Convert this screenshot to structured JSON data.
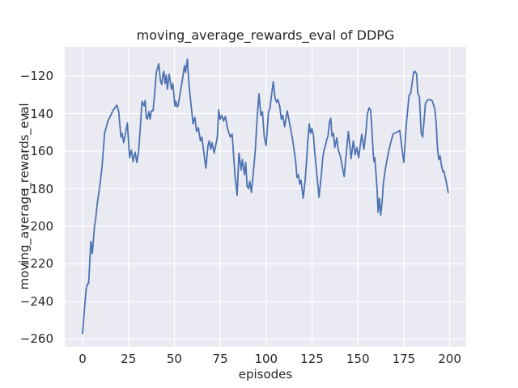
{
  "chart_data": {
    "type": "line",
    "title": "moving_average_rewards_eval of DDPG",
    "xlabel": "episodes",
    "ylabel": "moving_average_rewards_eval",
    "grid": true,
    "legend": "none",
    "background_color": "#eaeaf2",
    "grid_color": "#ffffff",
    "line_color": "#4c72b0",
    "text_color": "#262626",
    "xlim": [
      -9.71,
      209.0
    ],
    "ylim": [
      -264.1,
      -104.5
    ],
    "x_ticks": [
      0,
      25,
      50,
      75,
      100,
      125,
      150,
      175,
      200
    ],
    "x_tick_labels": [
      "0",
      "25",
      "50",
      "75",
      "100",
      "125",
      "150",
      "175",
      "200"
    ],
    "y_ticks": [
      -120,
      -140,
      -160,
      -180,
      -200,
      -220,
      -240,
      -260
    ],
    "y_tick_labels": [
      "−120",
      "−140",
      "−160",
      "−180",
      "−200",
      "−220",
      "−240",
      "−260"
    ],
    "series": [
      {
        "name": "moving_average_rewards_eval",
        "x": [
          0,
          1,
          2,
          2.8,
          3.3,
          4.5,
          5.3,
          6.5,
          7.2,
          8,
          9.4,
          10.6,
          12,
          13.8,
          15.3,
          16.8,
          18.7,
          19.7,
          20.9,
          21.5,
          22.4,
          24.4,
          25.6,
          26.6,
          27.5,
          28.6,
          29.6,
          30.6,
          32.4,
          33.6,
          34.1,
          34.7,
          35.3,
          36.1,
          36.8,
          37.5,
          38.4,
          39.4,
          40.2,
          41.5,
          42.4,
          43.1,
          43.8,
          44.3,
          44.9,
          45.6,
          46.2,
          47.2,
          48.4,
          49.2,
          50.3,
          50.8,
          51.6,
          52.1,
          54.3,
          55.5,
          56.1,
          57.1,
          58,
          59.5,
          60.2,
          61.2,
          62.1,
          63.1,
          64.2,
          65,
          66.1,
          67.2,
          68.3,
          69,
          69.8,
          70.5,
          71.7,
          73.4,
          74.2,
          74.9,
          75.9,
          76.8,
          77.8,
          79,
          80.5,
          81.5,
          83,
          84.2,
          85.2,
          86.4,
          87.1,
          88.2,
          88.9,
          89.6,
          90.4,
          91.1,
          92,
          94,
          95.2,
          96.1,
          97.1,
          98,
          99,
          100,
          101.3,
          102,
          103.9,
          104.9,
          105.7,
          106.4,
          107.4,
          108.3,
          109.1,
          110.1,
          111.5,
          113.9,
          114.6,
          116.1,
          116.8,
          117.6,
          118.3,
          119,
          120.2,
          121.3,
          122,
          122.7,
          123.5,
          124.2,
          124.9,
          125.7,
          126.4,
          127.1,
          127.9,
          128.8,
          130.1,
          130.8,
          131.5,
          132.3,
          133,
          133.7,
          134.5,
          135.2,
          135.9,
          136.7,
          137.4,
          138.5,
          139.3,
          140.4,
          142.5,
          144.8,
          146.3,
          147.5,
          148.5,
          149.4,
          150.4,
          152.1,
          153.3,
          154.4,
          155.1,
          156.1,
          156.9,
          157.7,
          158.4,
          158.8,
          159.2,
          159.9,
          160.5,
          161,
          161.7,
          162.4,
          163.2,
          163.9,
          164.7,
          165.7,
          166.9,
          167.9,
          169.1,
          171,
          172.8,
          175,
          176.4,
          177.9,
          178.7,
          180.4,
          181.1,
          182,
          182.6,
          183.5,
          184.5,
          185.3,
          186.8,
          187.8,
          188.9,
          190.4,
          191.9,
          192.6,
          193.4,
          194.1,
          194.8,
          195.5,
          196.3,
          196.8,
          198,
          199.2
        ],
        "y": [
          -257,
          -244,
          -233,
          -230.5,
          -230.5,
          -208,
          -214.5,
          -200,
          -195.5,
          -188,
          -178.5,
          -168.5,
          -150.5,
          -144,
          -141,
          -138,
          -135.5,
          -139,
          -152.5,
          -150.5,
          -155.5,
          -145,
          -163.5,
          -159.5,
          -165.5,
          -160.5,
          -166,
          -159.5,
          -133.5,
          -136,
          -133,
          -142,
          -143,
          -139,
          -143,
          -138.5,
          -138.5,
          -128,
          -118,
          -113.5,
          -122.5,
          -124.5,
          -119,
          -117.5,
          -124,
          -119.5,
          -127,
          -119,
          -127,
          -124,
          -136,
          -133.5,
          -136.5,
          -135.5,
          -122.5,
          -114.5,
          -118,
          -111,
          -125,
          -139,
          -145.5,
          -142,
          -149.5,
          -147.5,
          -154.5,
          -152.5,
          -161,
          -169,
          -157,
          -154.5,
          -159,
          -155.5,
          -161,
          -152.5,
          -138,
          -143,
          -141,
          -144,
          -141.5,
          -148,
          -152.5,
          -151,
          -172.5,
          -183.5,
          -161,
          -170,
          -164.5,
          -172.5,
          -166,
          -178.5,
          -180,
          -176,
          -182,
          -161,
          -141,
          -129.5,
          -141,
          -139,
          -152.5,
          -157,
          -139,
          -137.5,
          -123,
          -132,
          -134,
          -132.5,
          -136,
          -143,
          -141,
          -147,
          -138.5,
          -151,
          -155,
          -165.5,
          -174,
          -172.5,
          -177.5,
          -175.5,
          -185,
          -175,
          -165.5,
          -154.5,
          -145.5,
          -150.5,
          -148,
          -151,
          -159.5,
          -167,
          -175,
          -184.5,
          -172.5,
          -164,
          -159.5,
          -157,
          -154,
          -152,
          -144.5,
          -142.5,
          -152,
          -150.5,
          -158,
          -153,
          -159.5,
          -162.5,
          -173.5,
          -149.5,
          -164,
          -154.5,
          -162,
          -158,
          -163.5,
          -151,
          -159,
          -149.5,
          -140.5,
          -137,
          -138,
          -149.5,
          -162,
          -165.5,
          -163.5,
          -172.5,
          -181,
          -192.5,
          -185,
          -194,
          -187,
          -177,
          -171,
          -165.5,
          -159.5,
          -155.5,
          -151,
          -150,
          -149,
          -166,
          -145.5,
          -130,
          -129.5,
          -118,
          -117.5,
          -119,
          -129,
          -131,
          -150.5,
          -152.5,
          -134.5,
          -133,
          -132.5,
          -133,
          -137.5,
          -144.5,
          -159,
          -164.5,
          -162.5,
          -167.5,
          -171,
          -170.5,
          -175.5,
          -182
        ]
      }
    ]
  }
}
